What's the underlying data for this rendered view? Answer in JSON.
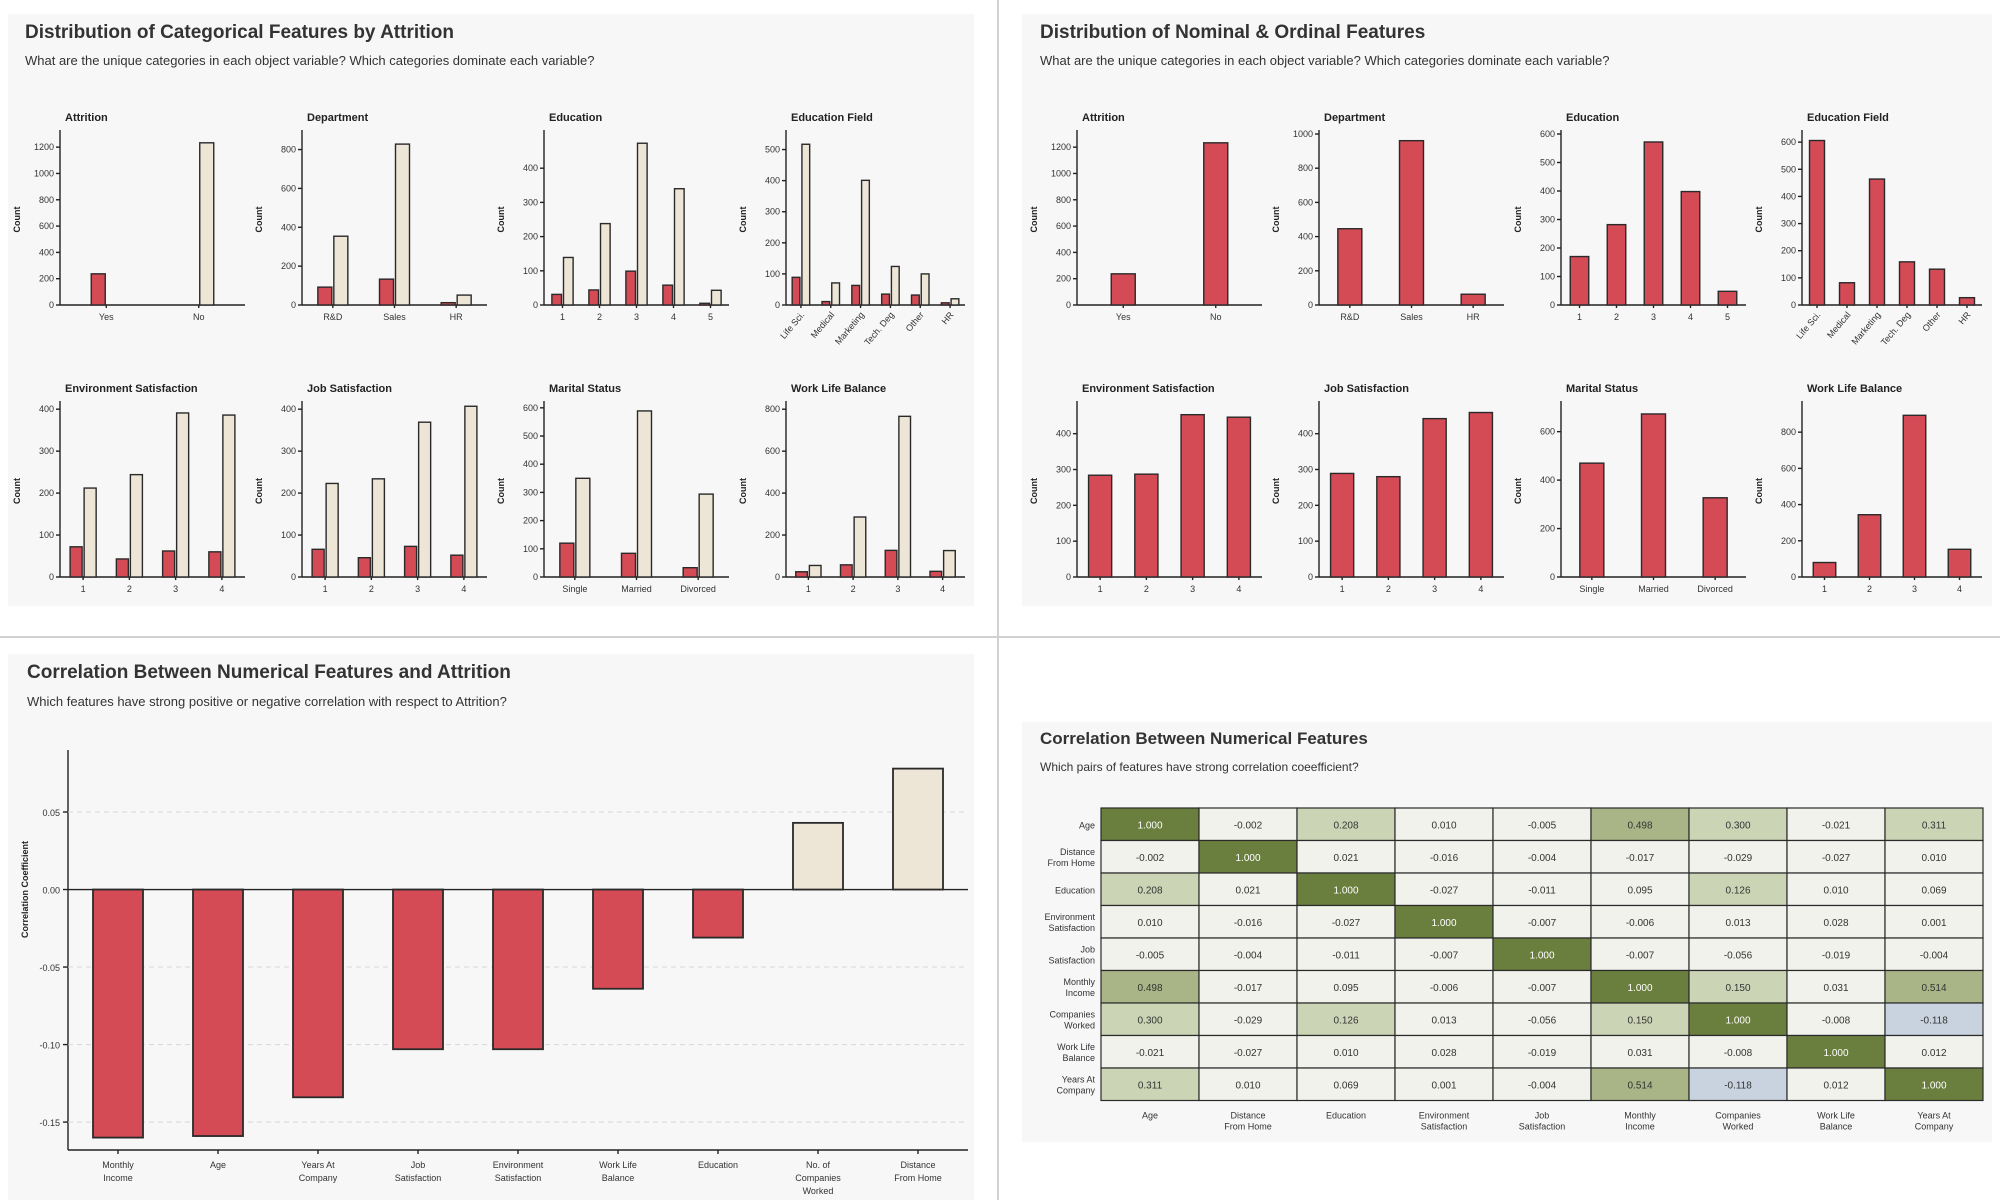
{
  "colors": {
    "red": "#d44a55",
    "cream": "#ede5d6",
    "outline": "#2a2a2a",
    "heat_high": "#6a7f3e",
    "heat_mid": "#a9b586",
    "heat_low": "#ccd4b6",
    "heat_zero": "#f1f2ec",
    "heat_neg": "#c9d3df"
  },
  "panels": {
    "cat_attr": {
      "title": "Distribution of Categorical Features by Attrition",
      "subtitle": "What are the unique categories in each object variable? Which categories dominate each variable?"
    },
    "nominal": {
      "title": "Distribution of Nominal & Ordinal Features",
      "subtitle": "What are the unique categories in each object variable? Which categories dominate each variable?"
    },
    "corr_attr": {
      "title": "Correlation Between Numerical Features and Attrition",
      "subtitle": "Which features have strong positive or negative correlation with respect to Attrition?"
    },
    "corr_matrix": {
      "title": "Correlation Between Numerical Features",
      "subtitle": "Which pairs of features have strong correlation coeefficient?"
    }
  },
  "chart_data": [
    {
      "type": "bar",
      "panel": "cat_attr",
      "subplots": [
        {
          "title": "Attrition",
          "ylabel": "Count",
          "categories": [
            "Yes",
            "No"
          ],
          "ylim": [
            0,
            1300
          ],
          "yticks": [
            0,
            200,
            400,
            600,
            800,
            1000,
            1200
          ],
          "rotate": false,
          "series": [
            {
              "values": [
                237,
                0
              ]
            },
            {
              "values": [
                0,
                1233
              ]
            }
          ]
        },
        {
          "title": "Department",
          "ylabel": "Count",
          "categories": [
            "R&D",
            "Sales",
            "HR"
          ],
          "ylim": [
            0,
            880
          ],
          "yticks": [
            0,
            200,
            400,
            600,
            800
          ],
          "rotate": false,
          "series": [
            {
              "values": [
                92,
                133,
                12
              ]
            },
            {
              "values": [
                354,
                828,
                51
              ]
            }
          ]
        },
        {
          "title": "Education",
          "ylabel": "Count",
          "categories": [
            "1",
            "2",
            "3",
            "4",
            "5"
          ],
          "ylim": [
            0,
            500
          ],
          "yticks": [
            0,
            100,
            200,
            300,
            400
          ],
          "rotate": false,
          "series": [
            {
              "values": [
                31,
                44,
                99,
                58,
                5
              ]
            },
            {
              "values": [
                139,
                238,
                473,
                340,
                43
              ]
            }
          ]
        },
        {
          "title": "Education Field",
          "ylabel": "Count",
          "categories": [
            "Life Sci.",
            "Medical",
            "Marketing",
            "Tech. Deg",
            "Other",
            "HR"
          ],
          "ylim": [
            0,
            550
          ],
          "yticks": [
            0,
            100,
            200,
            300,
            400,
            500
          ],
          "rotate": true,
          "series": [
            {
              "values": [
                89,
                11,
                63,
                35,
                32,
                7
              ]
            },
            {
              "values": [
                517,
                71,
                401,
                124,
                100,
                20
              ]
            }
          ]
        },
        {
          "title": "Environment Satisfaction",
          "ylabel": "Count",
          "categories": [
            "1",
            "2",
            "3",
            "4"
          ],
          "ylim": [
            0,
            410
          ],
          "yticks": [
            0,
            100,
            200,
            300,
            400
          ],
          "rotate": false,
          "series": [
            {
              "values": [
                72,
                43,
                62,
                60
              ]
            },
            {
              "values": [
                212,
                244,
                391,
                386
              ]
            }
          ]
        },
        {
          "title": "Job Satisfaction",
          "ylabel": "Count",
          "categories": [
            "1",
            "2",
            "3",
            "4"
          ],
          "ylim": [
            0,
            410
          ],
          "yticks": [
            0,
            100,
            200,
            300,
            400
          ],
          "rotate": false,
          "series": [
            {
              "values": [
                66,
                46,
                73,
                52
              ]
            },
            {
              "values": [
                223,
                234,
                369,
                407
              ]
            }
          ]
        },
        {
          "title": "Marital Status",
          "ylabel": "Count",
          "categories": [
            "Single",
            "Married",
            "Divorced"
          ],
          "ylim": [
            0,
            610
          ],
          "yticks": [
            0,
            100,
            200,
            300,
            400,
            500,
            600
          ],
          "rotate": false,
          "series": [
            {
              "values": [
                120,
                84,
                33
              ]
            },
            {
              "values": [
                350,
                589,
                294
              ]
            }
          ]
        },
        {
          "title": "Work Life Balance",
          "ylabel": "Count",
          "categories": [
            "1",
            "2",
            "3",
            "4"
          ],
          "ylim": [
            0,
            820
          ],
          "yticks": [
            0,
            200,
            400,
            600,
            800
          ],
          "rotate": false,
          "series": [
            {
              "values": [
                25,
                58,
                127,
                27
              ]
            },
            {
              "values": [
                55,
                286,
                766,
                126
              ]
            }
          ]
        }
      ]
    },
    {
      "type": "bar",
      "panel": "nominal",
      "subplots": [
        {
          "title": "Attrition",
          "ylabel": "Count",
          "categories": [
            "Yes",
            "No"
          ],
          "ylim": [
            0,
            1300
          ],
          "yticks": [
            0,
            200,
            400,
            600,
            800,
            1000,
            1200
          ],
          "rotate": false,
          "values": [
            237,
            1233
          ]
        },
        {
          "title": "Department",
          "ylabel": "Count",
          "categories": [
            "R&D",
            "Sales",
            "HR"
          ],
          "ylim": [
            0,
            1000
          ],
          "yticks": [
            0,
            200,
            400,
            600,
            800,
            1000
          ],
          "rotate": false,
          "values": [
            446,
            961,
            63
          ]
        },
        {
          "title": "Education",
          "ylabel": "Count",
          "categories": [
            "1",
            "2",
            "3",
            "4",
            "5"
          ],
          "ylim": [
            0,
            600
          ],
          "yticks": [
            0,
            100,
            200,
            300,
            400,
            500,
            600
          ],
          "rotate": false,
          "values": [
            170,
            282,
            572,
            398,
            48
          ]
        },
        {
          "title": "Education Field",
          "ylabel": "Count",
          "categories": [
            "Life Sci.",
            "Medical",
            "Marketing",
            "Tech. Deg",
            "Other",
            "HR"
          ],
          "ylim": [
            0,
            630
          ],
          "yticks": [
            0,
            100,
            200,
            300,
            400,
            500,
            600
          ],
          "rotate": true,
          "values": [
            606,
            82,
            464,
            159,
            132,
            27
          ]
        },
        {
          "title": "Environment Satisfaction",
          "ylabel": "Count",
          "categories": [
            "1",
            "2",
            "3",
            "4"
          ],
          "ylim": [
            0,
            480
          ],
          "yticks": [
            0,
            100,
            200,
            300,
            400
          ],
          "rotate": false,
          "values": [
            284,
            287,
            453,
            446
          ]
        },
        {
          "title": "Job Satisfaction",
          "ylabel": "Count",
          "categories": [
            "1",
            "2",
            "3",
            "4"
          ],
          "ylim": [
            0,
            480
          ],
          "yticks": [
            0,
            100,
            200,
            300,
            400
          ],
          "rotate": false,
          "values": [
            289,
            280,
            442,
            459
          ]
        },
        {
          "title": "Marital Status",
          "ylabel": "Count",
          "categories": [
            "Single",
            "Married",
            "Divorced"
          ],
          "ylim": [
            0,
            710
          ],
          "yticks": [
            0,
            200,
            400,
            600
          ],
          "rotate": false,
          "values": [
            470,
            673,
            327
          ]
        },
        {
          "title": "Work Life Balance",
          "ylabel": "Count",
          "categories": [
            "1",
            "2",
            "3",
            "4"
          ],
          "ylim": [
            0,
            950
          ],
          "yticks": [
            0,
            200,
            400,
            600,
            800
          ],
          "rotate": false,
          "values": [
            80,
            344,
            893,
            153
          ]
        }
      ]
    },
    {
      "type": "bar",
      "panel": "corr_attr",
      "categories": [
        "Monthly\nIncome",
        "Age",
        "Years At\nCompany",
        "Job\nSatisfaction",
        "Environment\nSatisfaction",
        "Work Life\nBalance",
        "Education",
        "No. of\nCompanies\nWorked",
        "Distance\nFrom Home"
      ],
      "values": [
        -0.16,
        -0.159,
        -0.134,
        -0.103,
        -0.103,
        -0.064,
        -0.031,
        0.043,
        0.078
      ],
      "ylabel": "Correlation Coefficient",
      "ylim": [
        -0.168,
        0.09
      ],
      "yticks": [
        -0.15,
        -0.1,
        -0.05,
        0.0,
        0.05
      ],
      "ytick_labels": [
        "-0.15",
        "-0.10",
        "-0.05",
        "0.00",
        "0.05"
      ],
      "grid": true
    },
    {
      "type": "heatmap",
      "panel": "corr_matrix",
      "row_labels": [
        "Age",
        "Distance\nFrom Home",
        "Education",
        "Environment\nSatisfaction",
        "Job\nSatisfaction",
        "Monthly\nIncome",
        "Companies\nWorked",
        "Work Life\nBalance",
        "Years At\nCompany"
      ],
      "col_labels": [
        "Age",
        "Distance\nFrom Home",
        "Education",
        "Environment\nSatisfaction",
        "Job\nSatisfaction",
        "Monthly\nIncome",
        "Companies\nWorked",
        "Work Life\nBalance",
        "Years At\nCompany"
      ],
      "values": [
        [
          "1.000",
          "-0.002",
          "0.208",
          "0.010",
          "-0.005",
          "0.498",
          "0.300",
          "-0.021",
          "0.311"
        ],
        [
          "-0.002",
          "1.000",
          "0.021",
          "-0.016",
          "-0.004",
          "-0.017",
          "-0.029",
          "-0.027",
          "0.010"
        ],
        [
          "0.208",
          "0.021",
          "1.000",
          "-0.027",
          "-0.011",
          "0.095",
          "0.126",
          "0.010",
          "0.069"
        ],
        [
          "0.010",
          "-0.016",
          "-0.027",
          "1.000",
          "-0.007",
          "-0.006",
          "0.013",
          "0.028",
          "0.001"
        ],
        [
          "-0.005",
          "-0.004",
          "-0.011",
          "-0.007",
          "1.000",
          "-0.007",
          "-0.056",
          "-0.019",
          "-0.004"
        ],
        [
          "0.498",
          "-0.017",
          "0.095",
          "-0.006",
          "-0.007",
          "1.000",
          "0.150",
          "0.031",
          "0.514"
        ],
        [
          "0.300",
          "-0.029",
          "0.126",
          "0.013",
          "-0.056",
          "0.150",
          "1.000",
          "-0.008",
          "-0.118"
        ],
        [
          "-0.021",
          "-0.027",
          "0.010",
          "0.028",
          "-0.019",
          "0.031",
          "-0.008",
          "1.000",
          "0.012"
        ],
        [
          "0.311",
          "0.010",
          "0.069",
          "0.001",
          "-0.004",
          "0.514",
          "-0.118",
          "0.012",
          "1.000"
        ]
      ]
    }
  ]
}
